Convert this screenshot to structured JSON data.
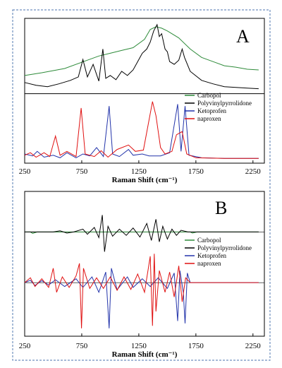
{
  "chart_data": [
    {
      "panel": "A",
      "type": "line",
      "xlabel": "Raman Shift (cm⁻¹)",
      "xlim": [
        250,
        2350
      ],
      "xticks": [
        250,
        750,
        1250,
        1750,
        2250
      ],
      "grid": false,
      "legend_position": "right",
      "colors": {
        "Carbopol": "#2e8b3a",
        "Polyvinylpyrrolidone": "#000000",
        "Ketoprofen": "#2233aa",
        "naproxen": "#e01010"
      },
      "series": [
        {
          "name": "Carbopol",
          "group": "upper",
          "points": [
            [
              250,
              0.78
            ],
            [
              400,
              0.74
            ],
            [
              600,
              0.68
            ],
            [
              800,
              0.56
            ],
            [
              900,
              0.5
            ],
            [
              1000,
              0.46
            ],
            [
              1100,
              0.42
            ],
            [
              1200,
              0.38
            ],
            [
              1300,
              0.26
            ],
            [
              1350,
              0.12
            ],
            [
              1400,
              0.08
            ],
            [
              1450,
              0.1
            ],
            [
              1500,
              0.14
            ],
            [
              1600,
              0.24
            ],
            [
              1700,
              0.4
            ],
            [
              1800,
              0.52
            ],
            [
              1900,
              0.58
            ],
            [
              2000,
              0.64
            ],
            [
              2100,
              0.66
            ],
            [
              2200,
              0.69
            ],
            [
              2300,
              0.7
            ]
          ]
        },
        {
          "name": "Polyvinylpyrrolidone",
          "group": "upper",
          "points": [
            [
              250,
              0.88
            ],
            [
              350,
              0.92
            ],
            [
              450,
              0.94
            ],
            [
              550,
              0.9
            ],
            [
              650,
              0.85
            ],
            [
              720,
              0.8
            ],
            [
              760,
              0.55
            ],
            [
              800,
              0.8
            ],
            [
              850,
              0.62
            ],
            [
              900,
              0.86
            ],
            [
              935,
              0.4
            ],
            [
              960,
              0.82
            ],
            [
              1000,
              0.78
            ],
            [
              1050,
              0.84
            ],
            [
              1100,
              0.72
            ],
            [
              1150,
              0.78
            ],
            [
              1200,
              0.7
            ],
            [
              1240,
              0.58
            ],
            [
              1280,
              0.46
            ],
            [
              1320,
              0.4
            ],
            [
              1350,
              0.3
            ],
            [
              1380,
              0.14
            ],
            [
              1410,
              0.05
            ],
            [
              1430,
              0.22
            ],
            [
              1450,
              0.18
            ],
            [
              1480,
              0.4
            ],
            [
              1500,
              0.44
            ],
            [
              1520,
              0.58
            ],
            [
              1560,
              0.62
            ],
            [
              1600,
              0.56
            ],
            [
              1630,
              0.4
            ],
            [
              1650,
              0.52
            ],
            [
              1700,
              0.72
            ],
            [
              1800,
              0.85
            ],
            [
              1900,
              0.9
            ],
            [
              2000,
              0.94
            ],
            [
              2100,
              0.95
            ],
            [
              2200,
              0.96
            ],
            [
              2300,
              0.97
            ]
          ]
        },
        {
          "name": "Ketoprofen",
          "group": "lower",
          "points": [
            [
              250,
              0.9
            ],
            [
              320,
              0.93
            ],
            [
              360,
              0.86
            ],
            [
              420,
              0.95
            ],
            [
              500,
              0.92
            ],
            [
              560,
              0.96
            ],
            [
              620,
              0.88
            ],
            [
              700,
              0.96
            ],
            [
              760,
              0.9
            ],
            [
              820,
              0.93
            ],
            [
              880,
              0.8
            ],
            [
              940,
              0.94
            ],
            [
              990,
              0.15
            ],
            [
              1020,
              0.9
            ],
            [
              1080,
              0.94
            ],
            [
              1160,
              0.83
            ],
            [
              1200,
              0.92
            ],
            [
              1280,
              0.9
            ],
            [
              1340,
              0.93
            ],
            [
              1440,
              0.93
            ],
            [
              1520,
              0.88
            ],
            [
              1590,
              0.12
            ],
            [
              1620,
              0.86
            ],
            [
              1655,
              0.15
            ],
            [
              1690,
              0.92
            ],
            [
              1800,
              0.96
            ],
            [
              2000,
              0.97
            ],
            [
              2300,
              0.97
            ]
          ]
        },
        {
          "name": "naproxen",
          "group": "lower",
          "points": [
            [
              250,
              0.92
            ],
            [
              300,
              0.88
            ],
            [
              350,
              0.95
            ],
            [
              420,
              0.88
            ],
            [
              470,
              0.94
            ],
            [
              520,
              0.62
            ],
            [
              560,
              0.92
            ],
            [
              620,
              0.86
            ],
            [
              700,
              0.94
            ],
            [
              745,
              0.18
            ],
            [
              780,
              0.9
            ],
            [
              860,
              0.94
            ],
            [
              920,
              0.85
            ],
            [
              980,
              0.95
            ],
            [
              1060,
              0.83
            ],
            [
              1160,
              0.76
            ],
            [
              1220,
              0.86
            ],
            [
              1290,
              0.84
            ],
            [
              1370,
              0.08
            ],
            [
              1400,
              0.3
            ],
            [
              1440,
              0.8
            ],
            [
              1480,
              0.9
            ],
            [
              1540,
              0.86
            ],
            [
              1580,
              0.6
            ],
            [
              1630,
              0.55
            ],
            [
              1670,
              0.9
            ],
            [
              1750,
              0.96
            ],
            [
              2000,
              0.97
            ],
            [
              2300,
              0.97
            ]
          ]
        }
      ]
    },
    {
      "panel": "B",
      "type": "line",
      "xlabel": "Raman Shift (cm⁻¹)",
      "xlim": [
        250,
        2350
      ],
      "xticks": [
        250,
        750,
        1250,
        1750,
        2250
      ],
      "grid": false,
      "legend_position": "right",
      "colors": {
        "Carbopol": "#2e8b3a",
        "Polyvinylpyrrolidone": "#000000",
        "Ketoprofen": "#2233aa",
        "naproxen": "#e01010"
      },
      "series": [
        {
          "name": "Carbopol",
          "group": "upper",
          "points": [
            [
              250,
              0.0
            ],
            [
              300,
              0.0
            ],
            [
              320,
              -0.05
            ],
            [
              360,
              0.0
            ],
            [
              1700,
              0.0
            ],
            [
              1720,
              -0.04
            ],
            [
              1760,
              0.0
            ],
            [
              2300,
              0.0
            ]
          ]
        },
        {
          "name": "Polyvinylpyrrolidone",
          "group": "upper",
          "points": [
            [
              250,
              0.0
            ],
            [
              500,
              0.0
            ],
            [
              560,
              0.04
            ],
            [
              620,
              -0.04
            ],
            [
              680,
              0.0
            ],
            [
              760,
              0.1
            ],
            [
              800,
              -0.08
            ],
            [
              860,
              0.16
            ],
            [
              900,
              -0.2
            ],
            [
              930,
              0.6
            ],
            [
              950,
              -0.7
            ],
            [
              980,
              0.2
            ],
            [
              1020,
              -0.15
            ],
            [
              1080,
              0.1
            ],
            [
              1140,
              -0.12
            ],
            [
              1200,
              0.14
            ],
            [
              1260,
              -0.18
            ],
            [
              1320,
              0.3
            ],
            [
              1360,
              -0.3
            ],
            [
              1400,
              0.45
            ],
            [
              1430,
              -0.35
            ],
            [
              1460,
              0.2
            ],
            [
              1500,
              -0.25
            ],
            [
              1540,
              0.1
            ],
            [
              1580,
              -0.12
            ],
            [
              1620,
              0.06
            ],
            [
              1680,
              0.0
            ],
            [
              2300,
              0.0
            ]
          ]
        },
        {
          "name": "Ketoprofen",
          "group": "lower",
          "points": [
            [
              250,
              0.0
            ],
            [
              300,
              0.05
            ],
            [
              340,
              -0.06
            ],
            [
              400,
              0.04
            ],
            [
              460,
              -0.05
            ],
            [
              520,
              0.06
            ],
            [
              600,
              -0.08
            ],
            [
              700,
              0.08
            ],
            [
              760,
              -0.1
            ],
            [
              840,
              0.12
            ],
            [
              900,
              -0.2
            ],
            [
              960,
              0.22
            ],
            [
              990,
              -0.95
            ],
            [
              1010,
              0.3
            ],
            [
              1060,
              -0.15
            ],
            [
              1150,
              0.12
            ],
            [
              1200,
              -0.1
            ],
            [
              1280,
              0.08
            ],
            [
              1350,
              -0.08
            ],
            [
              1420,
              0.1
            ],
            [
              1500,
              -0.12
            ],
            [
              1560,
              0.2
            ],
            [
              1590,
              -0.8
            ],
            [
              1610,
              0.25
            ],
            [
              1640,
              -0.2
            ],
            [
              1655,
              -0.85
            ],
            [
              1675,
              0.2
            ],
            [
              1700,
              0.0
            ],
            [
              2300,
              0.0
            ]
          ]
        },
        {
          "name": "naproxen",
          "group": "lower",
          "points": [
            [
              250,
              0.0
            ],
            [
              300,
              0.1
            ],
            [
              340,
              -0.08
            ],
            [
              400,
              0.08
            ],
            [
              460,
              -0.1
            ],
            [
              500,
              0.3
            ],
            [
              530,
              -0.2
            ],
            [
              580,
              0.12
            ],
            [
              640,
              -0.1
            ],
            [
              700,
              0.14
            ],
            [
              730,
              0.4
            ],
            [
              748,
              -0.95
            ],
            [
              765,
              0.3
            ],
            [
              820,
              -0.12
            ],
            [
              880,
              0.1
            ],
            [
              940,
              -0.12
            ],
            [
              1000,
              0.12
            ],
            [
              1060,
              -0.16
            ],
            [
              1120,
              0.12
            ],
            [
              1180,
              -0.14
            ],
            [
              1240,
              0.18
            ],
            [
              1300,
              -0.2
            ],
            [
              1350,
              0.55
            ],
            [
              1370,
              -0.9
            ],
            [
              1385,
              0.6
            ],
            [
              1400,
              -0.6
            ],
            [
              1430,
              0.25
            ],
            [
              1480,
              -0.2
            ],
            [
              1520,
              0.22
            ],
            [
              1560,
              -0.3
            ],
            [
              1600,
              0.35
            ],
            [
              1630,
              -0.4
            ],
            [
              1660,
              0.1
            ],
            [
              1700,
              0.0
            ],
            [
              2300,
              0.0
            ]
          ]
        }
      ]
    }
  ]
}
